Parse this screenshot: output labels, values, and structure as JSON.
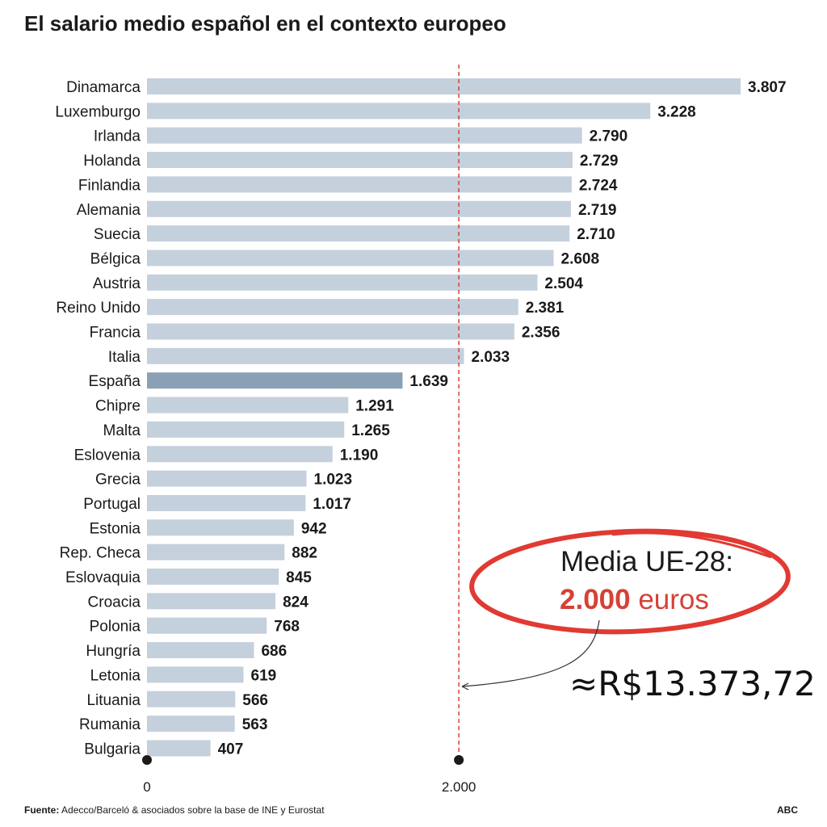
{
  "title": "El salario medio español en el contexto europeo",
  "footer": {
    "source_label": "Fuente:",
    "source_text": "Adecco/Barceló & asociados sobre la base de INE y Eurostat",
    "brand": "ABC"
  },
  "annotation": {
    "line1": "Media UE-28:",
    "value": "2.000",
    "unit": "euros",
    "conversion": "≈R$13.373,72"
  },
  "colors": {
    "bar": "#c5d0dd",
    "highlight_bar": "#8aa0b5",
    "reference_line": "#d64136",
    "ellipse": "#e03a33",
    "text": "#1a1a1a"
  },
  "chart_data": {
    "type": "bar",
    "orientation": "horizontal",
    "categories": [
      "Dinamarca",
      "Luxemburgo",
      "Irlanda",
      "Holanda",
      "Finlandia",
      "Alemania",
      "Suecia",
      "Bélgica",
      "Austria",
      "Reino Unido",
      "Francia",
      "Italia",
      "España",
      "Chipre",
      "Malta",
      "Eslovenia",
      "Grecia",
      "Portugal",
      "Estonia",
      "Rep. Checa",
      "Eslovaquia",
      "Croacia",
      "Polonia",
      "Hungría",
      "Letonia",
      "Lituania",
      "Rumania",
      "Bulgaria"
    ],
    "values": [
      3807,
      3228,
      2790,
      2729,
      2724,
      2719,
      2710,
      2608,
      2504,
      2381,
      2356,
      2033,
      1639,
      1291,
      1265,
      1190,
      1023,
      1017,
      942,
      882,
      845,
      824,
      768,
      686,
      619,
      566,
      563,
      407
    ],
    "value_labels": [
      "3.807",
      "3.228",
      "2.790",
      "2.729",
      "2.724",
      "2.719",
      "2.710",
      "2.608",
      "2.504",
      "2.381",
      "2.356",
      "2.033",
      "1.639",
      "1.291",
      "1.265",
      "1.190",
      "1.023",
      "1.017",
      "942",
      "882",
      "845",
      "824",
      "768",
      "686",
      "619",
      "566",
      "563",
      "407"
    ],
    "highlight": "España",
    "reference_value": 2000,
    "x_ticks": [
      0,
      2000
    ],
    "x_tick_labels": [
      "0",
      "2.000"
    ],
    "xlim": [
      0,
      3807
    ],
    "grid": false
  }
}
